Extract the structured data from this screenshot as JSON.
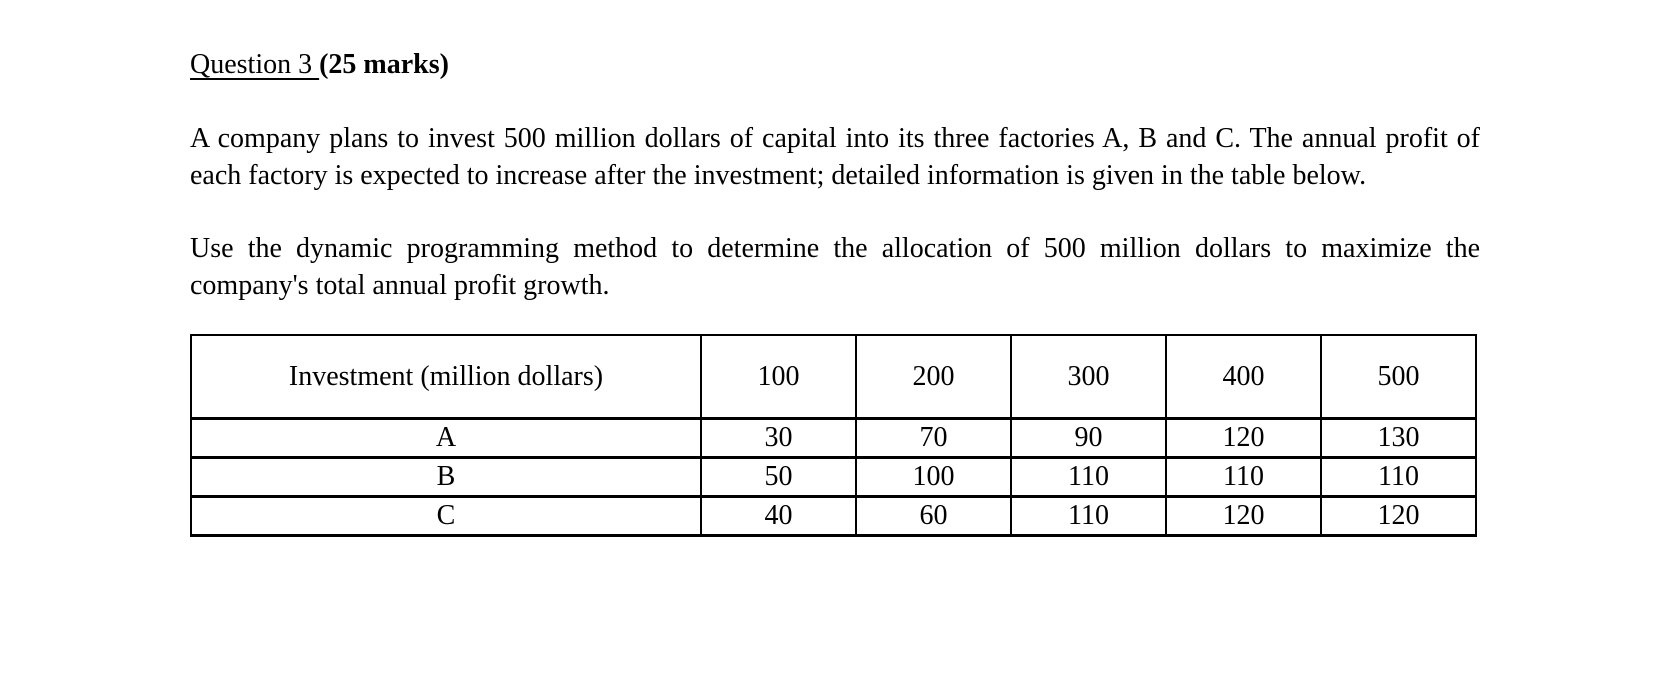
{
  "document": {
    "heading": {
      "title": "Question 3 ",
      "marks": "(25 marks)"
    },
    "paragraphs": {
      "intro": "A company plans to invest 500 million dollars of capital into its three factories A, B and C. The annual profit of each factory is expected to increase after the investment; detailed information is given in the table below.",
      "task": "Use the dynamic programming method to determine the allocation of 500 million dollars to maximize the company's total annual profit growth."
    },
    "table": {
      "header": [
        "Investment (million dollars)",
        "100",
        "200",
        "300",
        "400",
        "500"
      ],
      "rows": [
        {
          "label": "A",
          "values": [
            "30",
            "70",
            "90",
            "120",
            "130"
          ]
        },
        {
          "label": "B",
          "values": [
            "50",
            "100",
            "110",
            "110",
            "110"
          ]
        },
        {
          "label": "C",
          "values": [
            "40",
            "60",
            "110",
            "120",
            "120"
          ]
        }
      ]
    },
    "colors": {
      "text": "#000000",
      "background": "#ffffff",
      "border": "#000000"
    }
  }
}
